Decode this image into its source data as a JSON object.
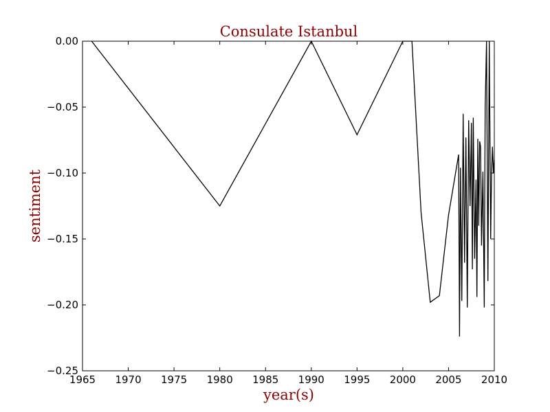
{
  "chart_data": {
    "type": "line",
    "title": "Consulate Istanbul",
    "xlabel": "year(s)",
    "ylabel": "sentiment",
    "xlim": [
      1965,
      2010
    ],
    "ylim": [
      -0.25,
      0.0
    ],
    "xticks": [
      "1965",
      "1970",
      "1975",
      "1980",
      "1985",
      "1990",
      "1995",
      "2000",
      "2005",
      "2010"
    ],
    "yticks": [
      "0.00",
      "−0.05",
      "−0.10",
      "−0.15",
      "−0.20",
      "−0.25"
    ],
    "grid": false,
    "line_color": "#000000",
    "text_color": "#8b0000",
    "series": [
      {
        "x": [
          1966.0,
          1980.0,
          1990.0,
          1995.0,
          2000.0,
          2001.0,
          2002.0,
          2003.0,
          2004.0,
          2005.0,
          2006.1,
          2006.2,
          2006.3,
          2006.45,
          2006.6,
          2006.75,
          2006.9,
          2007.05,
          2007.2,
          2007.35,
          2007.5,
          2007.6,
          2007.7,
          2007.85,
          2008.0,
          2008.1,
          2008.2,
          2008.3,
          2008.4,
          2008.5,
          2008.6,
          2008.75,
          2008.9,
          2009.0,
          2009.15,
          2009.3,
          2009.45,
          2009.6,
          2009.7,
          2009.8,
          2009.9,
          2010.0
        ],
        "y": [
          0.0,
          -0.125,
          0.0,
          -0.071,
          0.0,
          0.0,
          -0.13,
          -0.198,
          -0.193,
          -0.132,
          -0.086,
          -0.224,
          -0.096,
          -0.197,
          -0.055,
          -0.168,
          -0.073,
          -0.202,
          -0.06,
          -0.125,
          -0.062,
          -0.173,
          -0.058,
          -0.165,
          -0.105,
          -0.194,
          -0.074,
          -0.14,
          -0.076,
          -0.08,
          -0.155,
          -0.099,
          -0.202,
          -0.05,
          0.0,
          -0.182,
          0.0,
          -0.15,
          -0.1,
          -0.08,
          -0.1,
          -0.09
        ]
      }
    ]
  }
}
